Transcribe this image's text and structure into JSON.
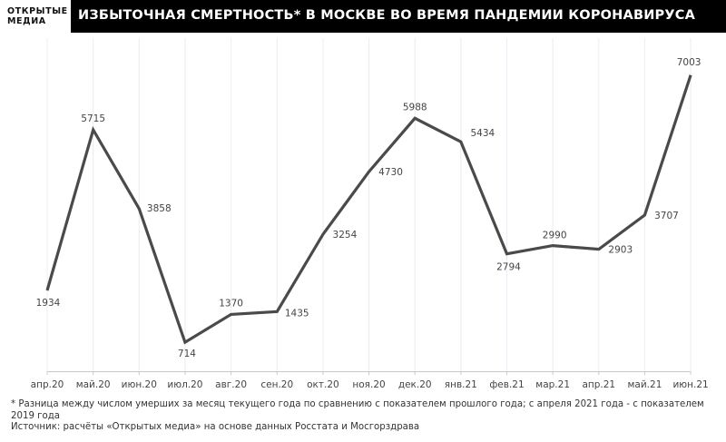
{
  "brand": {
    "line1": "ОТКРЫТЫЕ",
    "line2": "МЕДИА"
  },
  "header": {
    "title": "ИЗБЫТОЧНАЯ СМЕРТНОСТЬ* В МОСКВЕ ВО ВРЕМЯ ПАНДЕМИИ КОРОНАВИРУСА",
    "background": "#000000",
    "color": "#ffffff"
  },
  "footnote": "* Разница между числом умерших за месяц текущего года по сравнению с показателем прошлого года; с апреля 2021 года - с показателем 2019 года",
  "source": "Источник: расчёты «Открытых медиа» на основе данных Росстата и Мосгорздрава",
  "chart_data": {
    "type": "line",
    "title": "ИЗБЫТОЧНАЯ СМЕРТНОСТЬ* В МОСКВЕ ВО ВРЕМЯ ПАНДЕМИИ КОРОНАВИРУСА",
    "xlabel": "",
    "ylabel": "",
    "categories": [
      "апр.20",
      "май.20",
      "июн.20",
      "июл.20",
      "авг.20",
      "сен.20",
      "окт.20",
      "ноя.20",
      "дек.20",
      "янв.21",
      "фев.21",
      "мар.21",
      "апр.21",
      "май.21",
      "июн.21"
    ],
    "series": [
      {
        "name": "Избыточная смертность",
        "color": "#4a4a4a",
        "values": [
          1934,
          5715,
          3858,
          714,
          1370,
          1435,
          3254,
          4730,
          5988,
          5434,
          2794,
          2990,
          2903,
          3707,
          7003
        ]
      }
    ],
    "ylim": [
      0,
      7003
    ],
    "grid": {
      "vertical": true,
      "horizontal": false
    },
    "data_labels": true,
    "legend": null
  }
}
